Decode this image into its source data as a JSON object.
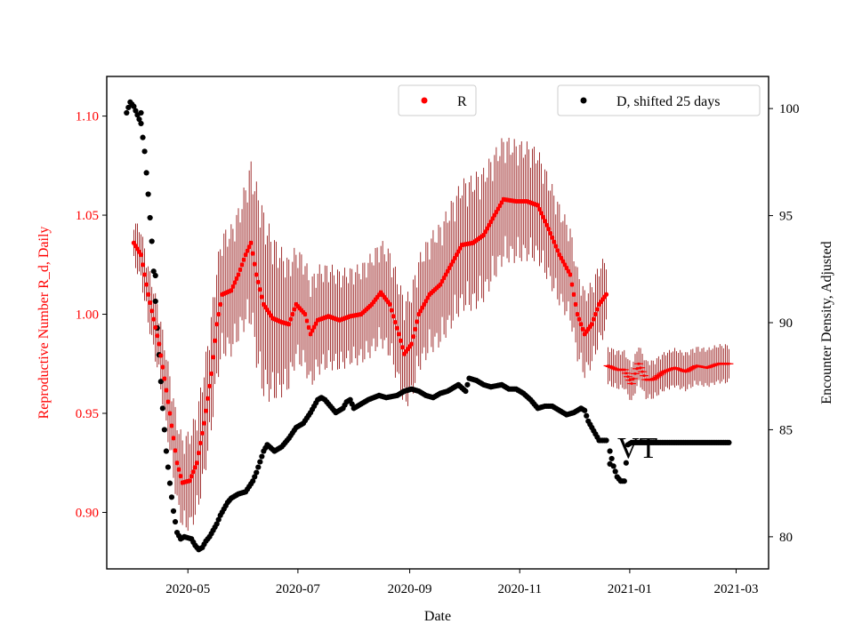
{
  "chart_data": {
    "type": "scatter",
    "xlabel": "Date",
    "ylabel_left": "Reproductive Number R_d, Daily",
    "ylabel_right": "Encounter Density, Adjusted",
    "left_color": "#ff0000",
    "right_color": "#000000",
    "errorbar_color": "#8b0000",
    "x_ticks": [
      {
        "label": "2020-05",
        "day": 30
      },
      {
        "label": "2020-07",
        "day": 91
      },
      {
        "label": "2020-09",
        "day": 153
      },
      {
        "label": "2020-11",
        "day": 214
      },
      {
        "label": "2021-01",
        "day": 275
      },
      {
        "label": "2021-03",
        "day": 334
      }
    ],
    "x_range_days": [
      -15,
      352
    ],
    "x_origin": "2020-04-01",
    "y_left_range": [
      0.8715,
      1.12
    ],
    "y_left_ticks": [
      "0.90",
      "0.95",
      "1.00",
      "1.05",
      "1.10"
    ],
    "y_right_range": [
      78.5,
      101.5
    ],
    "y_right_ticks": [
      "80",
      "85",
      "90",
      "95",
      "100"
    ],
    "legend": {
      "r_label": "R",
      "d_label": "D, shifted 25 days",
      "r_position": "upper-center",
      "d_position": "upper-right"
    },
    "annotation": "VT",
    "series_R": {
      "name": "R",
      "color": "#ff0000",
      "knots": [
        [
          0,
          1.036
        ],
        [
          4,
          1.03
        ],
        [
          8,
          1.01
        ],
        [
          14,
          0.985
        ],
        [
          20,
          0.95
        ],
        [
          24,
          0.925
        ],
        [
          27,
          0.915
        ],
        [
          31,
          0.916
        ],
        [
          35,
          0.925
        ],
        [
          39,
          0.945
        ],
        [
          43,
          0.97
        ],
        [
          46,
          0.995
        ],
        [
          49,
          1.01
        ],
        [
          54,
          1.012
        ],
        [
          58,
          1.02
        ],
        [
          62,
          1.03
        ],
        [
          65,
          1.036
        ],
        [
          68,
          1.02
        ],
        [
          72,
          1.005
        ],
        [
          77,
          0.998
        ],
        [
          82,
          0.996
        ],
        [
          86,
          0.995
        ],
        [
          90,
          1.005
        ],
        [
          95,
          1.0
        ],
        [
          98,
          0.99
        ],
        [
          102,
          0.997
        ],
        [
          108,
          0.999
        ],
        [
          114,
          0.997
        ],
        [
          120,
          0.999
        ],
        [
          126,
          1.0
        ],
        [
          132,
          1.005
        ],
        [
          137,
          1.011
        ],
        [
          142,
          1.005
        ],
        [
          147,
          0.99
        ],
        [
          150,
          0.98
        ],
        [
          154,
          0.985
        ],
        [
          158,
          1.0
        ],
        [
          164,
          1.01
        ],
        [
          170,
          1.015
        ],
        [
          176,
          1.025
        ],
        [
          182,
          1.035
        ],
        [
          188,
          1.036
        ],
        [
          194,
          1.04
        ],
        [
          200,
          1.05
        ],
        [
          205,
          1.058
        ],
        [
          212,
          1.057
        ],
        [
          218,
          1.057
        ],
        [
          224,
          1.055
        ],
        [
          230,
          1.043
        ],
        [
          236,
          1.03
        ],
        [
          242,
          1.02
        ],
        [
          246,
          1.0
        ],
        [
          250,
          0.99
        ],
        [
          254,
          0.995
        ],
        [
          258,
          1.005
        ],
        [
          262,
          1.01
        ]
      ],
      "knots_err": [
        [
          0,
          0.012
        ],
        [
          40,
          0.03
        ],
        [
          60,
          0.035
        ],
        [
          70,
          0.05
        ],
        [
          90,
          0.03
        ],
        [
          120,
          0.025
        ],
        [
          160,
          0.03
        ],
        [
          190,
          0.035
        ],
        [
          220,
          0.03
        ],
        [
          262,
          0.02
        ]
      ],
      "tail_knots": [
        [
          263,
          0.974
        ],
        [
          268,
          0.972
        ],
        [
          272,
          0.972
        ],
        [
          276,
          0.965
        ],
        [
          280,
          0.975
        ],
        [
          284,
          0.967
        ],
        [
          288,
          0.967
        ],
        [
          294,
          0.971
        ],
        [
          300,
          0.973
        ],
        [
          306,
          0.971
        ],
        [
          312,
          0.974
        ],
        [
          318,
          0.973
        ],
        [
          324,
          0.975
        ],
        [
          330,
          0.975
        ]
      ],
      "tail_err": 0.01
    },
    "series_D": {
      "name": "D, shifted 25 days",
      "color": "#000000",
      "knots": [
        [
          -4,
          99.8
        ],
        [
          -2,
          100.3
        ],
        [
          0,
          100.1
        ],
        [
          4,
          99.3
        ],
        [
          6,
          98.0
        ],
        [
          8,
          96.0
        ],
        [
          10,
          93.8
        ],
        [
          12,
          91.0
        ],
        [
          14,
          88.5
        ],
        [
          16,
          86.0
        ],
        [
          18,
          84.0
        ],
        [
          20,
          82.5
        ],
        [
          22,
          81.2
        ],
        [
          24,
          80.2
        ],
        [
          26,
          79.9
        ],
        [
          28,
          80.0
        ],
        [
          32,
          79.9
        ],
        [
          34,
          79.6
        ],
        [
          36,
          79.4
        ],
        [
          38,
          79.5
        ],
        [
          40,
          79.8
        ],
        [
          42,
          80.0
        ],
        [
          44,
          80.3
        ],
        [
          46,
          80.6
        ],
        [
          48,
          81.0
        ],
        [
          50,
          81.3
        ],
        [
          52,
          81.6
        ],
        [
          54,
          81.8
        ],
        [
          58,
          82.0
        ],
        [
          62,
          82.1
        ],
        [
          66,
          82.6
        ],
        [
          68,
          83.0
        ],
        [
          70,
          83.5
        ],
        [
          72,
          84.0
        ],
        [
          74,
          84.3
        ],
        [
          78,
          84.0
        ],
        [
          82,
          84.2
        ],
        [
          86,
          84.6
        ],
        [
          90,
          85.1
        ],
        [
          94,
          85.3
        ],
        [
          98,
          85.8
        ],
        [
          100,
          86.1
        ],
        [
          102,
          86.4
        ],
        [
          104,
          86.5
        ],
        [
          106,
          86.4
        ],
        [
          108,
          86.2
        ],
        [
          110,
          86.0
        ],
        [
          112,
          85.8
        ],
        [
          116,
          86.0
        ],
        [
          118,
          86.3
        ],
        [
          120,
          86.4
        ],
        [
          122,
          86.0
        ],
        [
          126,
          86.2
        ],
        [
          130,
          86.4
        ],
        [
          136,
          86.6
        ],
        [
          140,
          86.5
        ],
        [
          146,
          86.6
        ],
        [
          150,
          86.8
        ],
        [
          154,
          86.9
        ],
        [
          158,
          86.8
        ],
        [
          162,
          86.6
        ],
        [
          166,
          86.5
        ],
        [
          170,
          86.7
        ],
        [
          174,
          86.8
        ],
        [
          178,
          87.0
        ],
        [
          180,
          87.1
        ],
        [
          184,
          86.8
        ],
        [
          186,
          87.4
        ],
        [
          190,
          87.3
        ],
        [
          194,
          87.1
        ],
        [
          198,
          87.0
        ],
        [
          204,
          87.1
        ],
        [
          208,
          86.9
        ],
        [
          212,
          86.9
        ],
        [
          216,
          86.7
        ],
        [
          220,
          86.4
        ],
        [
          224,
          86.0
        ],
        [
          228,
          86.1
        ],
        [
          232,
          86.1
        ],
        [
          236,
          85.9
        ],
        [
          240,
          85.7
        ],
        [
          244,
          85.8
        ],
        [
          248,
          86.0
        ],
        [
          250,
          85.9
        ],
        [
          252,
          85.4
        ],
        [
          256,
          84.8
        ],
        [
          258,
          84.5
        ],
        [
          262,
          84.5
        ]
      ],
      "tail_knots": [
        [
          264,
          84.0
        ],
        [
          266,
          83.3
        ],
        [
          268,
          82.8
        ],
        [
          270,
          82.6
        ],
        [
          272,
          82.6
        ],
        [
          274,
          84.3
        ],
        [
          276,
          84.4
        ],
        [
          300,
          84.4
        ],
        [
          330,
          84.4
        ]
      ],
      "extra_points": [
        [
          4,
          99.8
        ],
        [
          12,
          92.2
        ],
        [
          264,
          83.4
        ]
      ]
    }
  }
}
